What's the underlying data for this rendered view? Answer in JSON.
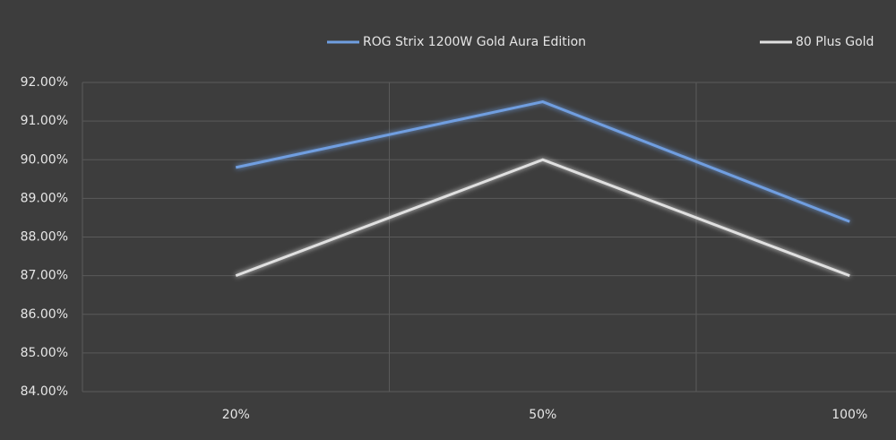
{
  "chart_data": {
    "type": "line",
    "categories": [
      "20%",
      "50%",
      "100%"
    ],
    "series": [
      {
        "name": "ROG Strix 1200W Gold Aura Edition",
        "color": "#6f9ee0",
        "values": [
          89.8,
          91.5,
          88.4
        ]
      },
      {
        "name": "80 Plus Gold",
        "color": "#e0e0e0",
        "values": [
          87.0,
          90.0,
          87.0
        ]
      }
    ],
    "ylim": [
      84,
      92
    ],
    "yticks": [
      {
        "value": 84,
        "label": "84.00%"
      },
      {
        "value": 85,
        "label": "85.00%"
      },
      {
        "value": 86,
        "label": "86.00%"
      },
      {
        "value": 87,
        "label": "87.00%"
      },
      {
        "value": 88,
        "label": "88.00%"
      },
      {
        "value": 89,
        "label": "89.00%"
      },
      {
        "value": 90,
        "label": "90.00%"
      },
      {
        "value": 91,
        "label": "91.00%"
      },
      {
        "value": 92,
        "label": "92.00%"
      }
    ],
    "grid": true
  }
}
